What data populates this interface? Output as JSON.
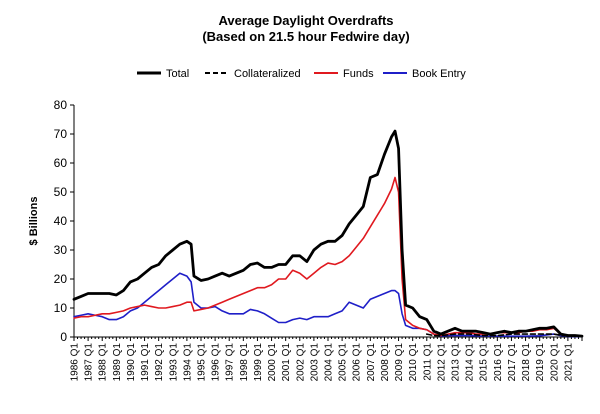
{
  "chart_data": {
    "type": "line",
    "title": "Average Daylight Overdrafts",
    "subtitle": "(Based on 21.5 hour Fedwire day)",
    "ylabel": "$ Billions",
    "xlabel": "",
    "ylim": [
      0,
      80
    ],
    "yticks": [
      0,
      10,
      20,
      30,
      40,
      50,
      60,
      70,
      80
    ],
    "xlim": [
      1986.0,
      2022.0
    ],
    "xtick_labels": [
      "1986 Q1",
      "1987 Q1",
      "1988 Q1",
      "1989 Q1",
      "1990 Q1",
      "1991 Q1",
      "1992 Q1",
      "1993 Q1",
      "1994 Q1",
      "1995 Q1",
      "1996 Q1",
      "1997 Q1",
      "1998 Q1",
      "1999 Q1",
      "2000 Q1",
      "2001 Q1",
      "2002 Q1",
      "2003 Q1",
      "2004 Q1",
      "2005 Q1",
      "2006 Q1",
      "2007 Q1",
      "2008 Q1",
      "2009 Q1",
      "2010 Q1",
      "2011 Q1",
      "2012 Q1",
      "2013 Q1",
      "2014 Q1",
      "2015 Q1",
      "2016 Q1",
      "2017 Q1",
      "2018 Q1",
      "2019 Q1",
      "2020 Q1",
      "2021 Q1"
    ],
    "grid": false,
    "legend_position": "top",
    "series": [
      {
        "name": "Total",
        "color": "#000000",
        "style": "solid",
        "points": [
          [
            1986.0,
            13
          ],
          [
            1986.5,
            14
          ],
          [
            1987.0,
            15
          ],
          [
            1987.5,
            15
          ],
          [
            1988.0,
            15
          ],
          [
            1988.5,
            15
          ],
          [
            1989.0,
            14.5
          ],
          [
            1989.5,
            16
          ],
          [
            1990.0,
            19
          ],
          [
            1990.5,
            20
          ],
          [
            1991.0,
            22
          ],
          [
            1991.5,
            24
          ],
          [
            1992.0,
            25
          ],
          [
            1992.5,
            28
          ],
          [
            1993.0,
            30
          ],
          [
            1993.5,
            32
          ],
          [
            1994.0,
            33
          ],
          [
            1994.3,
            32
          ],
          [
            1994.5,
            21
          ],
          [
            1995.0,
            19.5
          ],
          [
            1995.5,
            20
          ],
          [
            1996.0,
            21
          ],
          [
            1996.5,
            22
          ],
          [
            1997.0,
            21
          ],
          [
            1997.5,
            22
          ],
          [
            1998.0,
            23
          ],
          [
            1998.5,
            25
          ],
          [
            1999.0,
            25.5
          ],
          [
            1999.5,
            24
          ],
          [
            2000.0,
            24
          ],
          [
            2000.5,
            25
          ],
          [
            2001.0,
            25
          ],
          [
            2001.5,
            28
          ],
          [
            2002.0,
            28
          ],
          [
            2002.5,
            26
          ],
          [
            2003.0,
            30
          ],
          [
            2003.5,
            32
          ],
          [
            2004.0,
            33
          ],
          [
            2004.5,
            33
          ],
          [
            2005.0,
            35
          ],
          [
            2005.5,
            39
          ],
          [
            2006.0,
            42
          ],
          [
            2006.5,
            45
          ],
          [
            2007.0,
            55
          ],
          [
            2007.5,
            56
          ],
          [
            2008.0,
            63
          ],
          [
            2008.5,
            69
          ],
          [
            2008.75,
            71
          ],
          [
            2009.0,
            65
          ],
          [
            2009.25,
            30
          ],
          [
            2009.5,
            11
          ],
          [
            2010.0,
            10
          ],
          [
            2010.5,
            7
          ],
          [
            2011.0,
            6
          ],
          [
            2011.5,
            2
          ],
          [
            2012.0,
            1
          ],
          [
            2012.5,
            2
          ],
          [
            2013.0,
            3
          ],
          [
            2013.5,
            2
          ],
          [
            2014.0,
            2
          ],
          [
            2014.5,
            2
          ],
          [
            2015.0,
            1.5
          ],
          [
            2015.5,
            1
          ],
          [
            2016.0,
            1.5
          ],
          [
            2016.5,
            2
          ],
          [
            2017.0,
            1.5
          ],
          [
            2017.5,
            2
          ],
          [
            2018.0,
            2
          ],
          [
            2018.5,
            2.5
          ],
          [
            2019.0,
            3
          ],
          [
            2019.5,
            3
          ],
          [
            2020.0,
            3.5
          ],
          [
            2020.5,
            1
          ],
          [
            2021.0,
            0.5
          ],
          [
            2021.5,
            0.5
          ],
          [
            2022.0,
            0.3
          ]
        ]
      },
      {
        "name": "Collateralized",
        "color": "#000000",
        "style": "dashed",
        "points": [
          [
            2011.0,
            1
          ],
          [
            2011.5,
            0.5
          ],
          [
            2012.0,
            0.5
          ],
          [
            2013.0,
            1
          ],
          [
            2014.0,
            1
          ],
          [
            2015.0,
            0.5
          ],
          [
            2016.0,
            0.5
          ],
          [
            2017.0,
            1
          ],
          [
            2018.0,
            1
          ],
          [
            2019.0,
            1
          ],
          [
            2020.0,
            1
          ],
          [
            2021.0,
            0.3
          ],
          [
            2022.0,
            0.2
          ]
        ]
      },
      {
        "name": "Funds",
        "color": "#e0191f",
        "style": "solid",
        "points": [
          [
            1986.0,
            6.5
          ],
          [
            1986.5,
            7
          ],
          [
            1987.0,
            7
          ],
          [
            1987.5,
            7.5
          ],
          [
            1988.0,
            8
          ],
          [
            1988.5,
            8
          ],
          [
            1989.0,
            8.5
          ],
          [
            1989.5,
            9
          ],
          [
            1990.0,
            10
          ],
          [
            1990.5,
            10.5
          ],
          [
            1991.0,
            11
          ],
          [
            1991.5,
            10.5
          ],
          [
            1992.0,
            10
          ],
          [
            1992.5,
            10
          ],
          [
            1993.0,
            10.5
          ],
          [
            1993.5,
            11
          ],
          [
            1994.0,
            12
          ],
          [
            1994.3,
            12
          ],
          [
            1994.5,
            9
          ],
          [
            1995.0,
            9.5
          ],
          [
            1995.5,
            10
          ],
          [
            1996.0,
            11
          ],
          [
            1996.5,
            12
          ],
          [
            1997.0,
            13
          ],
          [
            1997.5,
            14
          ],
          [
            1998.0,
            15
          ],
          [
            1998.5,
            16
          ],
          [
            1999.0,
            17
          ],
          [
            1999.5,
            17
          ],
          [
            2000.0,
            18
          ],
          [
            2000.5,
            20
          ],
          [
            2001.0,
            20
          ],
          [
            2001.5,
            23
          ],
          [
            2002.0,
            22
          ],
          [
            2002.5,
            20
          ],
          [
            2003.0,
            22
          ],
          [
            2003.5,
            24
          ],
          [
            2004.0,
            25.5
          ],
          [
            2004.5,
            25
          ],
          [
            2005.0,
            26
          ],
          [
            2005.5,
            28
          ],
          [
            2006.0,
            31
          ],
          [
            2006.5,
            34
          ],
          [
            2007.0,
            38
          ],
          [
            2007.5,
            42
          ],
          [
            2008.0,
            46
          ],
          [
            2008.5,
            51
          ],
          [
            2008.75,
            55
          ],
          [
            2009.0,
            50
          ],
          [
            2009.25,
            20
          ],
          [
            2009.5,
            6
          ],
          [
            2010.0,
            4
          ],
          [
            2010.5,
            3
          ],
          [
            2011.0,
            2.5
          ],
          [
            2011.5,
            1
          ],
          [
            2012.0,
            0.5
          ],
          [
            2012.5,
            1
          ],
          [
            2013.0,
            1.5
          ],
          [
            2013.5,
            1.5
          ],
          [
            2014.0,
            1.5
          ],
          [
            2014.5,
            1
          ],
          [
            2015.0,
            1
          ],
          [
            2015.5,
            1
          ],
          [
            2016.0,
            1.5
          ],
          [
            2016.5,
            1.5
          ],
          [
            2017.0,
            1.5
          ],
          [
            2017.5,
            1.5
          ],
          [
            2018.0,
            2
          ],
          [
            2018.5,
            2
          ],
          [
            2019.0,
            2.5
          ],
          [
            2019.5,
            2.5
          ],
          [
            2020.0,
            3
          ],
          [
            2020.5,
            1
          ],
          [
            2021.0,
            0.5
          ],
          [
            2021.5,
            0.5
          ],
          [
            2022.0,
            0.3
          ]
        ]
      },
      {
        "name": "Book Entry",
        "color": "#1f1fc8",
        "style": "solid",
        "points": [
          [
            1986.0,
            7
          ],
          [
            1986.5,
            7.5
          ],
          [
            1987.0,
            8
          ],
          [
            1987.5,
            7.5
          ],
          [
            1988.0,
            7
          ],
          [
            1988.5,
            6
          ],
          [
            1989.0,
            6
          ],
          [
            1989.5,
            7
          ],
          [
            1990.0,
            9
          ],
          [
            1990.5,
            10
          ],
          [
            1991.0,
            12
          ],
          [
            1991.5,
            14
          ],
          [
            1992.0,
            16
          ],
          [
            1992.5,
            18
          ],
          [
            1993.0,
            20
          ],
          [
            1993.5,
            22
          ],
          [
            1994.0,
            21
          ],
          [
            1994.3,
            19
          ],
          [
            1994.5,
            12
          ],
          [
            1995.0,
            10
          ],
          [
            1995.5,
            10
          ],
          [
            1996.0,
            10.5
          ],
          [
            1996.5,
            9
          ],
          [
            1997.0,
            8
          ],
          [
            1997.5,
            8
          ],
          [
            1998.0,
            8
          ],
          [
            1998.5,
            9.5
          ],
          [
            1999.0,
            9
          ],
          [
            1999.5,
            8
          ],
          [
            2000.0,
            6.5
          ],
          [
            2000.5,
            5
          ],
          [
            2001.0,
            5
          ],
          [
            2001.5,
            6
          ],
          [
            2002.0,
            6.5
          ],
          [
            2002.5,
            6
          ],
          [
            2003.0,
            7
          ],
          [
            2003.5,
            7
          ],
          [
            2004.0,
            7
          ],
          [
            2004.5,
            8
          ],
          [
            2005.0,
            9
          ],
          [
            2005.5,
            12
          ],
          [
            2006.0,
            11
          ],
          [
            2006.5,
            10
          ],
          [
            2007.0,
            13
          ],
          [
            2007.5,
            14
          ],
          [
            2008.0,
            15
          ],
          [
            2008.5,
            16
          ],
          [
            2008.75,
            16
          ],
          [
            2009.0,
            15
          ],
          [
            2009.25,
            8
          ],
          [
            2009.5,
            4
          ],
          [
            2010.0,
            3
          ],
          [
            2010.5,
            3
          ],
          [
            2011.0,
            2.5
          ],
          [
            2011.5,
            1
          ],
          [
            2012.0,
            0.3
          ],
          [
            2012.5,
            0.5
          ],
          [
            2013.0,
            0.5
          ],
          [
            2014.0,
            0.5
          ],
          [
            2015.0,
            0.3
          ],
          [
            2016.0,
            0.3
          ],
          [
            2017.0,
            0.3
          ],
          [
            2018.0,
            0.3
          ],
          [
            2019.0,
            0.4
          ],
          [
            2020.0,
            1
          ],
          [
            2020.5,
            0.5
          ],
          [
            2021.0,
            0.2
          ],
          [
            2022.0,
            0.1
          ]
        ]
      }
    ]
  }
}
